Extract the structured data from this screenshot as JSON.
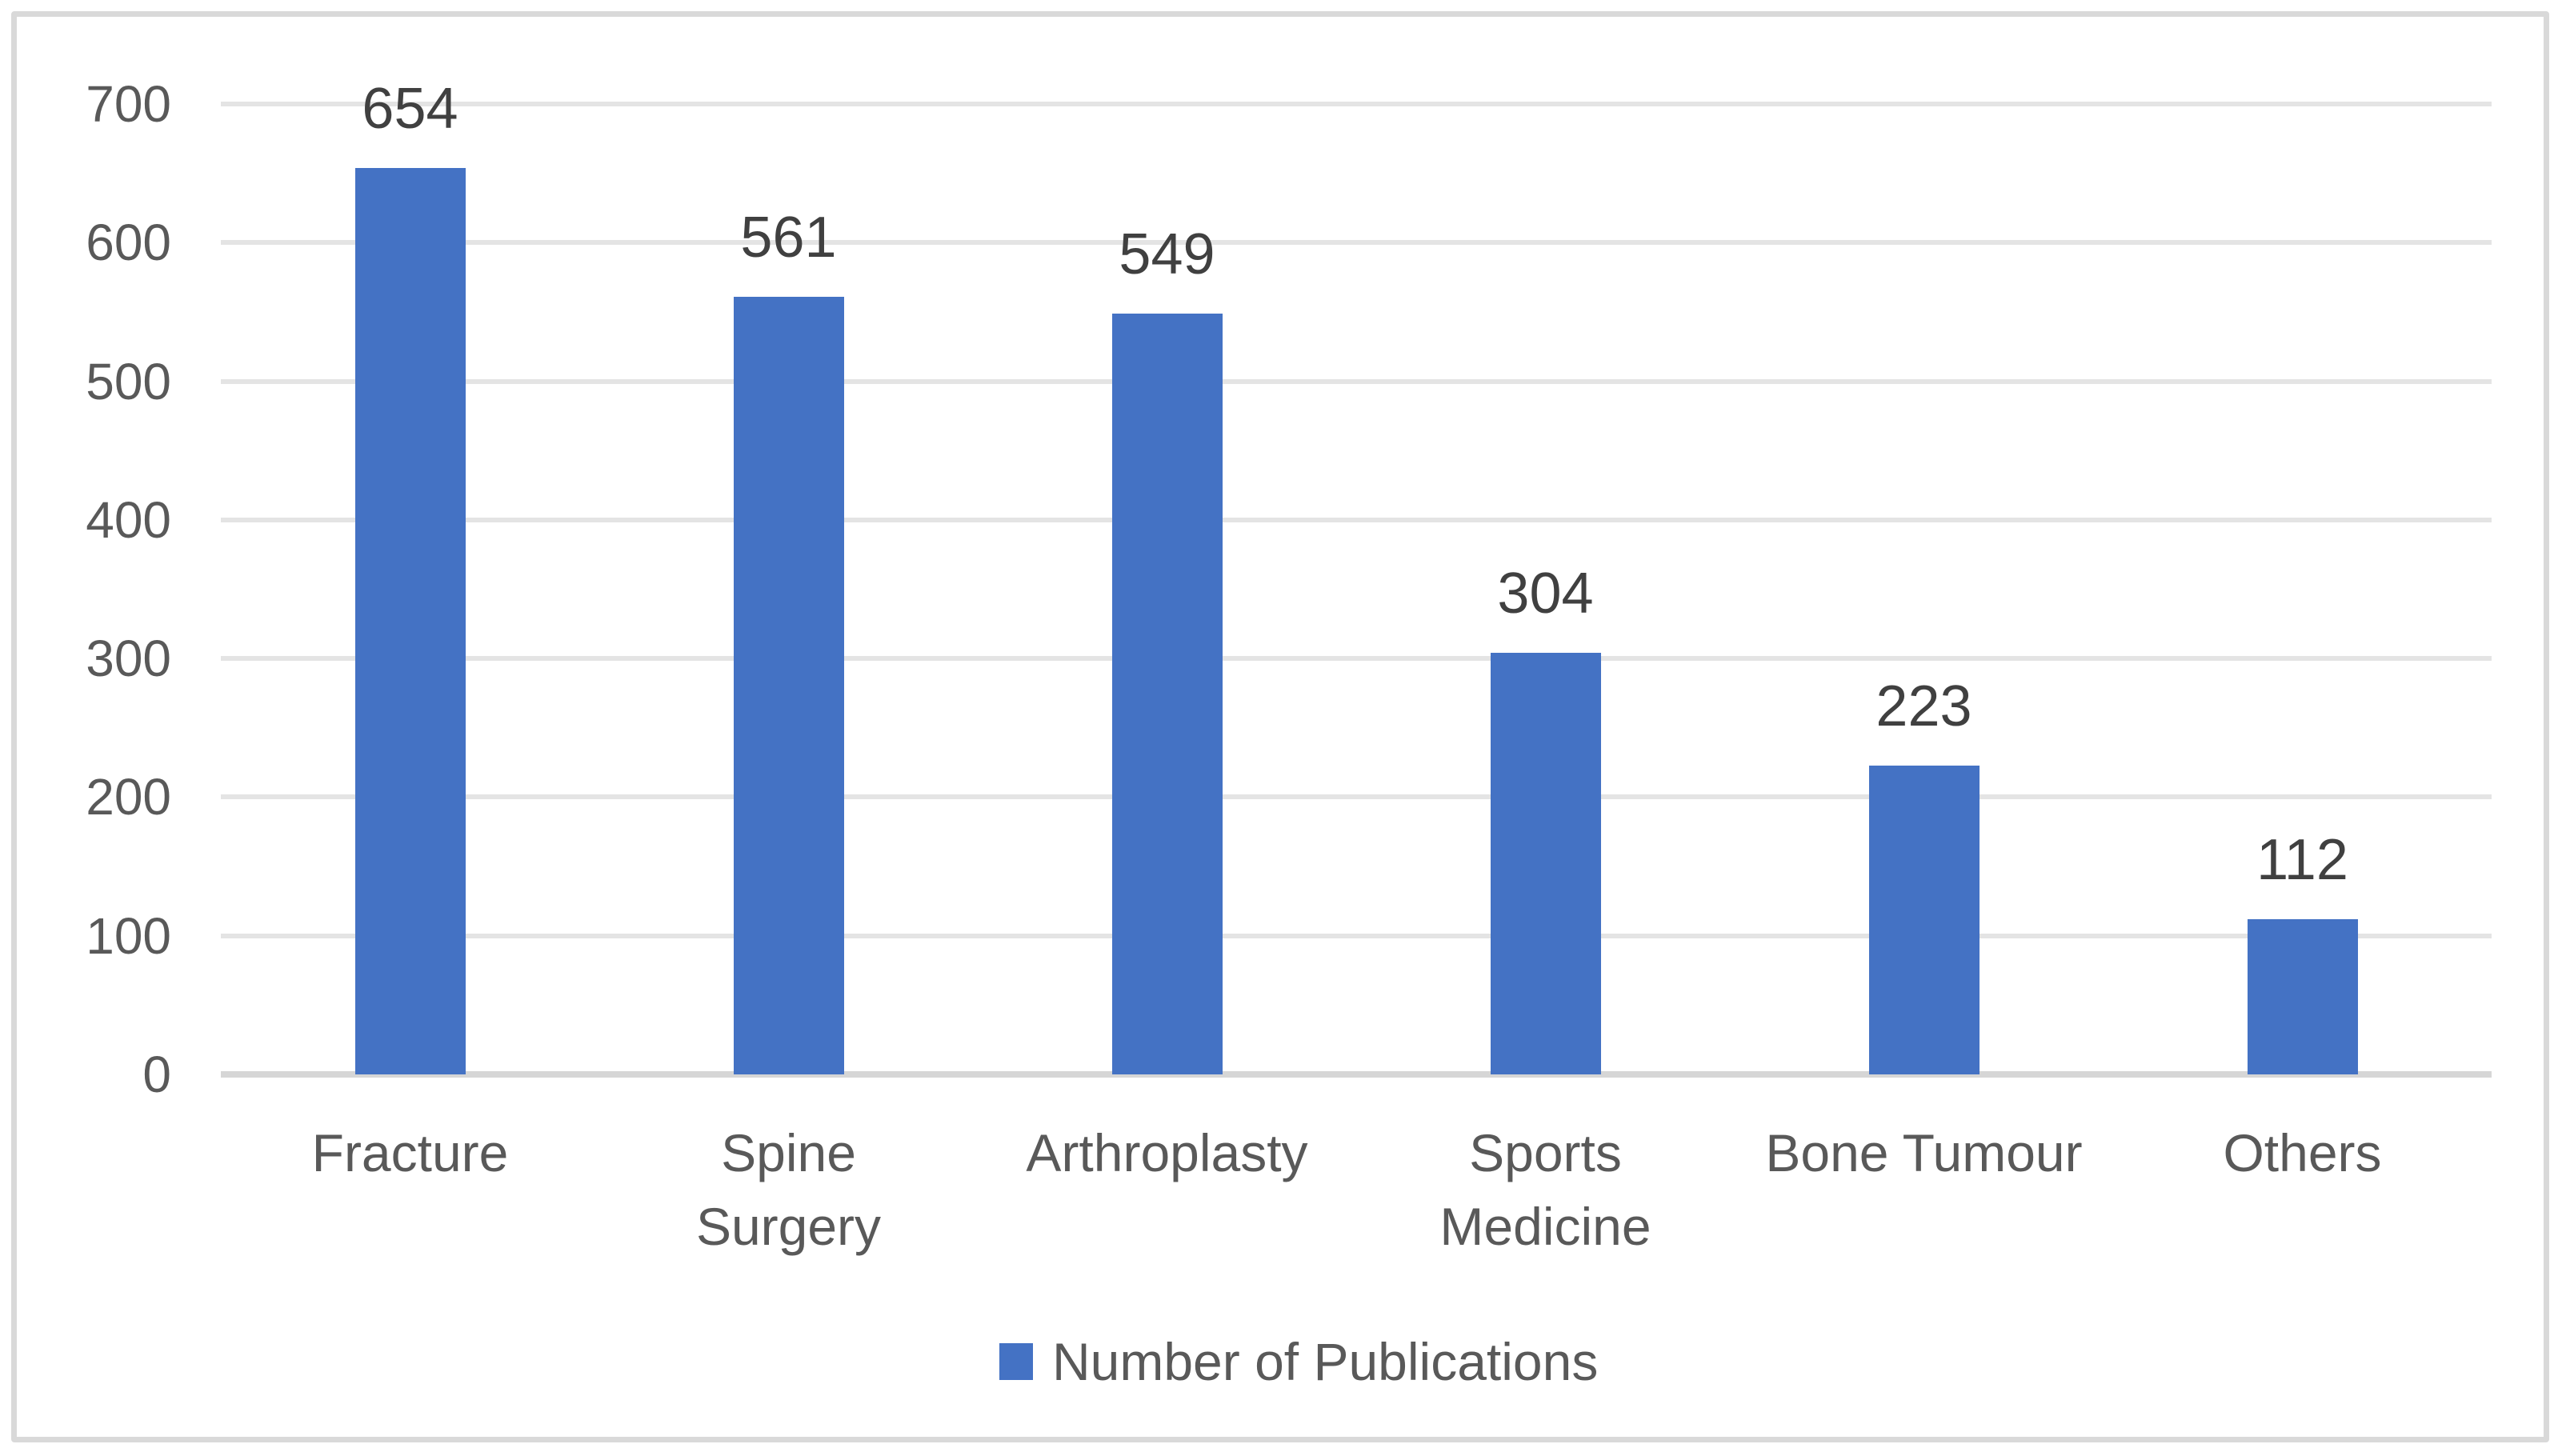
{
  "chart_data": {
    "type": "bar",
    "categories": [
      "Fracture",
      "Spine Surgery",
      "Arthroplasty",
      "Sports Medicine",
      "Bone Tumour",
      "Others"
    ],
    "values": [
      654,
      561,
      549,
      304,
      223,
      112
    ],
    "data_labels": [
      "654",
      "561",
      "549",
      "304",
      "223",
      "112"
    ],
    "series_name": "Number of Publications",
    "title": "",
    "xlabel": "",
    "ylabel": "",
    "ylim": [
      0,
      700
    ],
    "yticks": [
      0,
      100,
      200,
      300,
      400,
      500,
      600,
      700
    ],
    "grid": true,
    "legend_position": "bottom",
    "bar_color": "#4472c4",
    "gridline_color": "#e4e4e4",
    "axis_line_color": "#d6d6d6",
    "tick_label_color": "#595959",
    "data_label_color": "#404040",
    "frame_border_color": "#d9d9d9"
  },
  "legend": {
    "label": "Number of Publications",
    "swatch_icon": "blue-square"
  }
}
